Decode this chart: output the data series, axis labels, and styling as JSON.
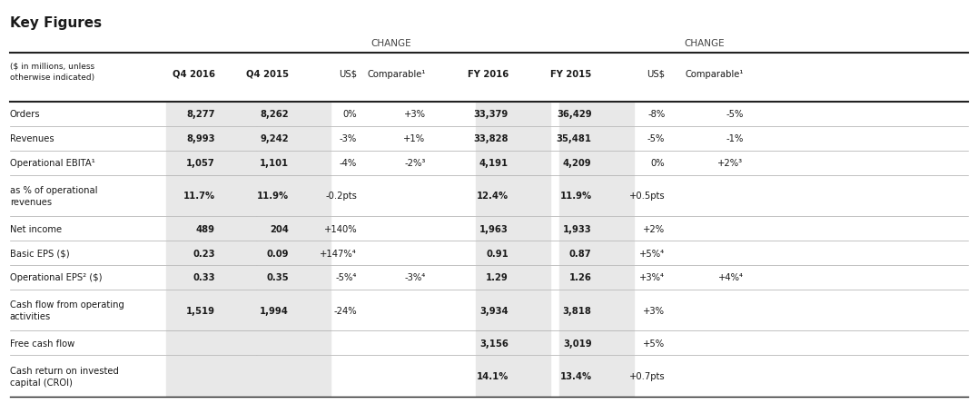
{
  "title": "Key Figures",
  "subtitle_note": "($ in millions, unless\notherwise indicated)",
  "col_headers": [
    "Q4 2016",
    "Q4 2015",
    "US$",
    "Comparable¹",
    "FY 2016",
    "FY 2015",
    "US$",
    "Comparable¹"
  ],
  "change_label_q4": "CHANGE",
  "change_label_fy": "CHANGE",
  "rows": [
    {
      "label": "Orders",
      "q4_2016": "8,277",
      "q4_2015": "8,262",
      "q4_usd": "0%",
      "q4_comp": "+3%",
      "fy_2016": "33,379",
      "fy_2015": "36,429",
      "fy_usd": "-8%",
      "fy_comp": "-5%",
      "two_line": false
    },
    {
      "label": "Revenues",
      "q4_2016": "8,993",
      "q4_2015": "9,242",
      "q4_usd": "-3%",
      "q4_comp": "+1%",
      "fy_2016": "33,828",
      "fy_2015": "35,481",
      "fy_usd": "-5%",
      "fy_comp": "-1%",
      "two_line": false
    },
    {
      "label": "Operational EBITA¹",
      "q4_2016": "1,057",
      "q4_2015": "1,101",
      "q4_usd": "-4%",
      "q4_comp": "-2%³",
      "fy_2016": "4,191",
      "fy_2015": "4,209",
      "fy_usd": "0%",
      "fy_comp": "+2%³",
      "two_line": false
    },
    {
      "label": "as % of operational\nrevenues",
      "q4_2016": "11.7%",
      "q4_2015": "11.9%",
      "q4_usd": "-0.2pts",
      "q4_comp": "",
      "fy_2016": "12.4%",
      "fy_2015": "11.9%",
      "fy_usd": "+0.5pts",
      "fy_comp": "",
      "two_line": true
    },
    {
      "label": "Net income",
      "q4_2016": "489",
      "q4_2015": "204",
      "q4_usd": "+140%",
      "q4_comp": "",
      "fy_2016": "1,963",
      "fy_2015": "1,933",
      "fy_usd": "+2%",
      "fy_comp": "",
      "two_line": false
    },
    {
      "label": "Basic EPS ($)",
      "q4_2016": "0.23",
      "q4_2015": "0.09",
      "q4_usd": "+147%⁴",
      "q4_comp": "",
      "fy_2016": "0.91",
      "fy_2015": "0.87",
      "fy_usd": "+5%⁴",
      "fy_comp": "",
      "two_line": false
    },
    {
      "label": "Operational EPS² ($)",
      "q4_2016": "0.33",
      "q4_2015": "0.35",
      "q4_usd": "-5%⁴",
      "q4_comp": "-3%⁴",
      "fy_2016": "1.29",
      "fy_2015": "1.26",
      "fy_usd": "+3%⁴",
      "fy_comp": "+4%⁴",
      "two_line": false
    },
    {
      "label": "Cash flow from operating\nactivities",
      "q4_2016": "1,519",
      "q4_2015": "1,994",
      "q4_usd": "-24%",
      "q4_comp": "",
      "fy_2016": "3,934",
      "fy_2015": "3,818",
      "fy_usd": "+3%",
      "fy_comp": "",
      "two_line": true
    },
    {
      "label": "Free cash flow",
      "q4_2016": "",
      "q4_2015": "",
      "q4_usd": "",
      "q4_comp": "",
      "fy_2016": "3,156",
      "fy_2015": "3,019",
      "fy_usd": "+5%",
      "fy_comp": "",
      "two_line": false
    },
    {
      "label": "Cash return on invested\ncapital (CROI)",
      "q4_2016": "",
      "q4_2015": "",
      "q4_usd": "",
      "q4_comp": "",
      "fy_2016": "14.1%",
      "fy_2015": "13.4%",
      "fy_usd": "+0.7pts",
      "fy_comp": "",
      "two_line": true
    }
  ],
  "bg_color": "#ffffff",
  "header_bg": "#d0d0d0",
  "stripe_bg": "#e8e8e8",
  "text_color": "#1a1a1a",
  "bold_col_color": "#1a1a1a",
  "line_color": "#555555",
  "thick_line_color": "#222222"
}
